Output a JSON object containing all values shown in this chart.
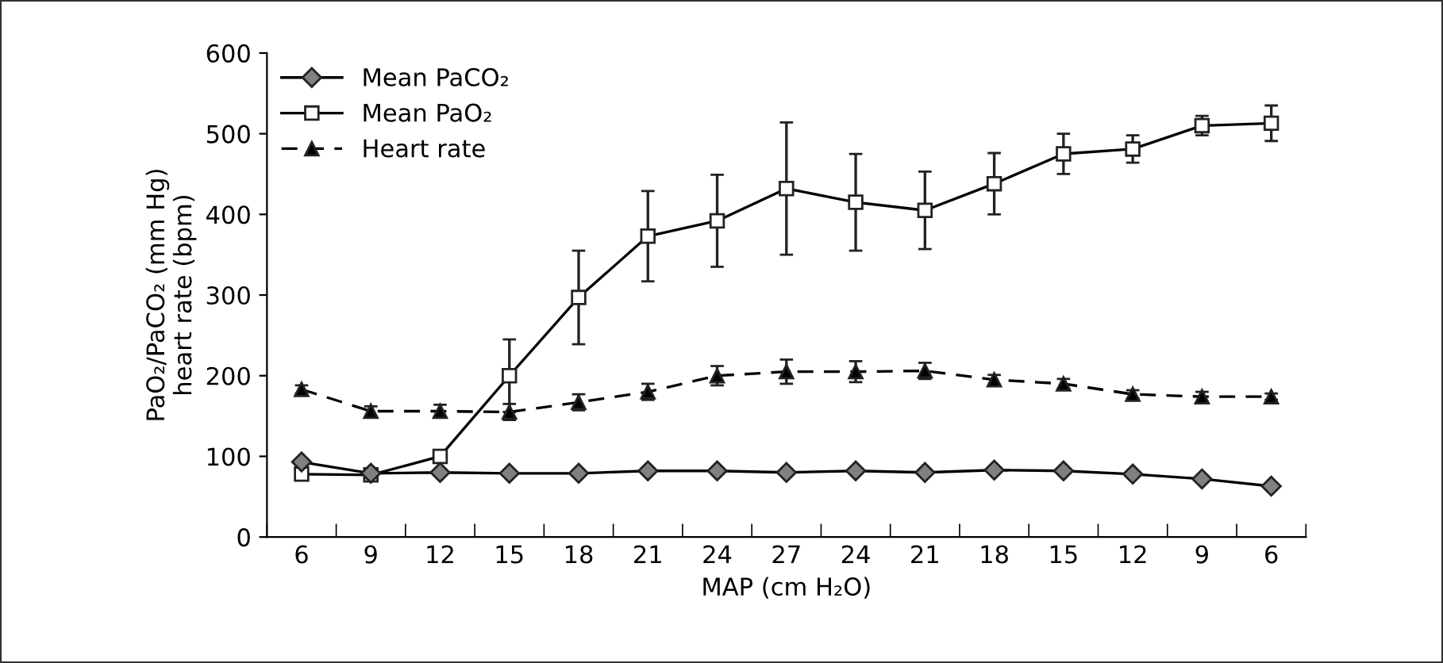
{
  "chart_data": {
    "type": "line",
    "xlabel": "MAP (cm H₂O)",
    "ylabel": "PaO₂/PaCO₂ (mm Hg)\nheart rate (bpm)",
    "categories": [
      "6",
      "9",
      "12",
      "15",
      "18",
      "21",
      "24",
      "27",
      "24",
      "21",
      "18",
      "15",
      "12",
      "9",
      "6"
    ],
    "series": [
      {
        "name": "Mean PaCO₂",
        "color": "#808080",
        "marker": "diamond",
        "line_style": "solid",
        "values": [
          93,
          79,
          80,
          79,
          79,
          82,
          82,
          80,
          82,
          80,
          83,
          82,
          78,
          72,
          63
        ]
      },
      {
        "name": "Mean PaO₂",
        "color": "#ffffff",
        "marker": "square",
        "line_style": "solid",
        "values": [
          78,
          77,
          100,
          200,
          297,
          373,
          392,
          432,
          415,
          405,
          438,
          475,
          481,
          510,
          513
        ],
        "errors": [
          null,
          null,
          5,
          45,
          58,
          56,
          57,
          82,
          60,
          48,
          38,
          25,
          17,
          12,
          22
        ]
      },
      {
        "name": "Heart rate",
        "color": "#000000",
        "marker": "triangle",
        "line_style": "dashed",
        "values": [
          183,
          156,
          156,
          155,
          167,
          180,
          200,
          205,
          205,
          206,
          195,
          190,
          177,
          174,
          174
        ],
        "errors": [
          5,
          6,
          8,
          10,
          10,
          10,
          12,
          15,
          13,
          10,
          6,
          6,
          5,
          6,
          4
        ]
      }
    ],
    "ylim": [
      0,
      600
    ],
    "yticks": [
      0,
      100,
      200,
      300,
      400,
      500,
      600
    ],
    "grid": false,
    "legend": "top left"
  }
}
